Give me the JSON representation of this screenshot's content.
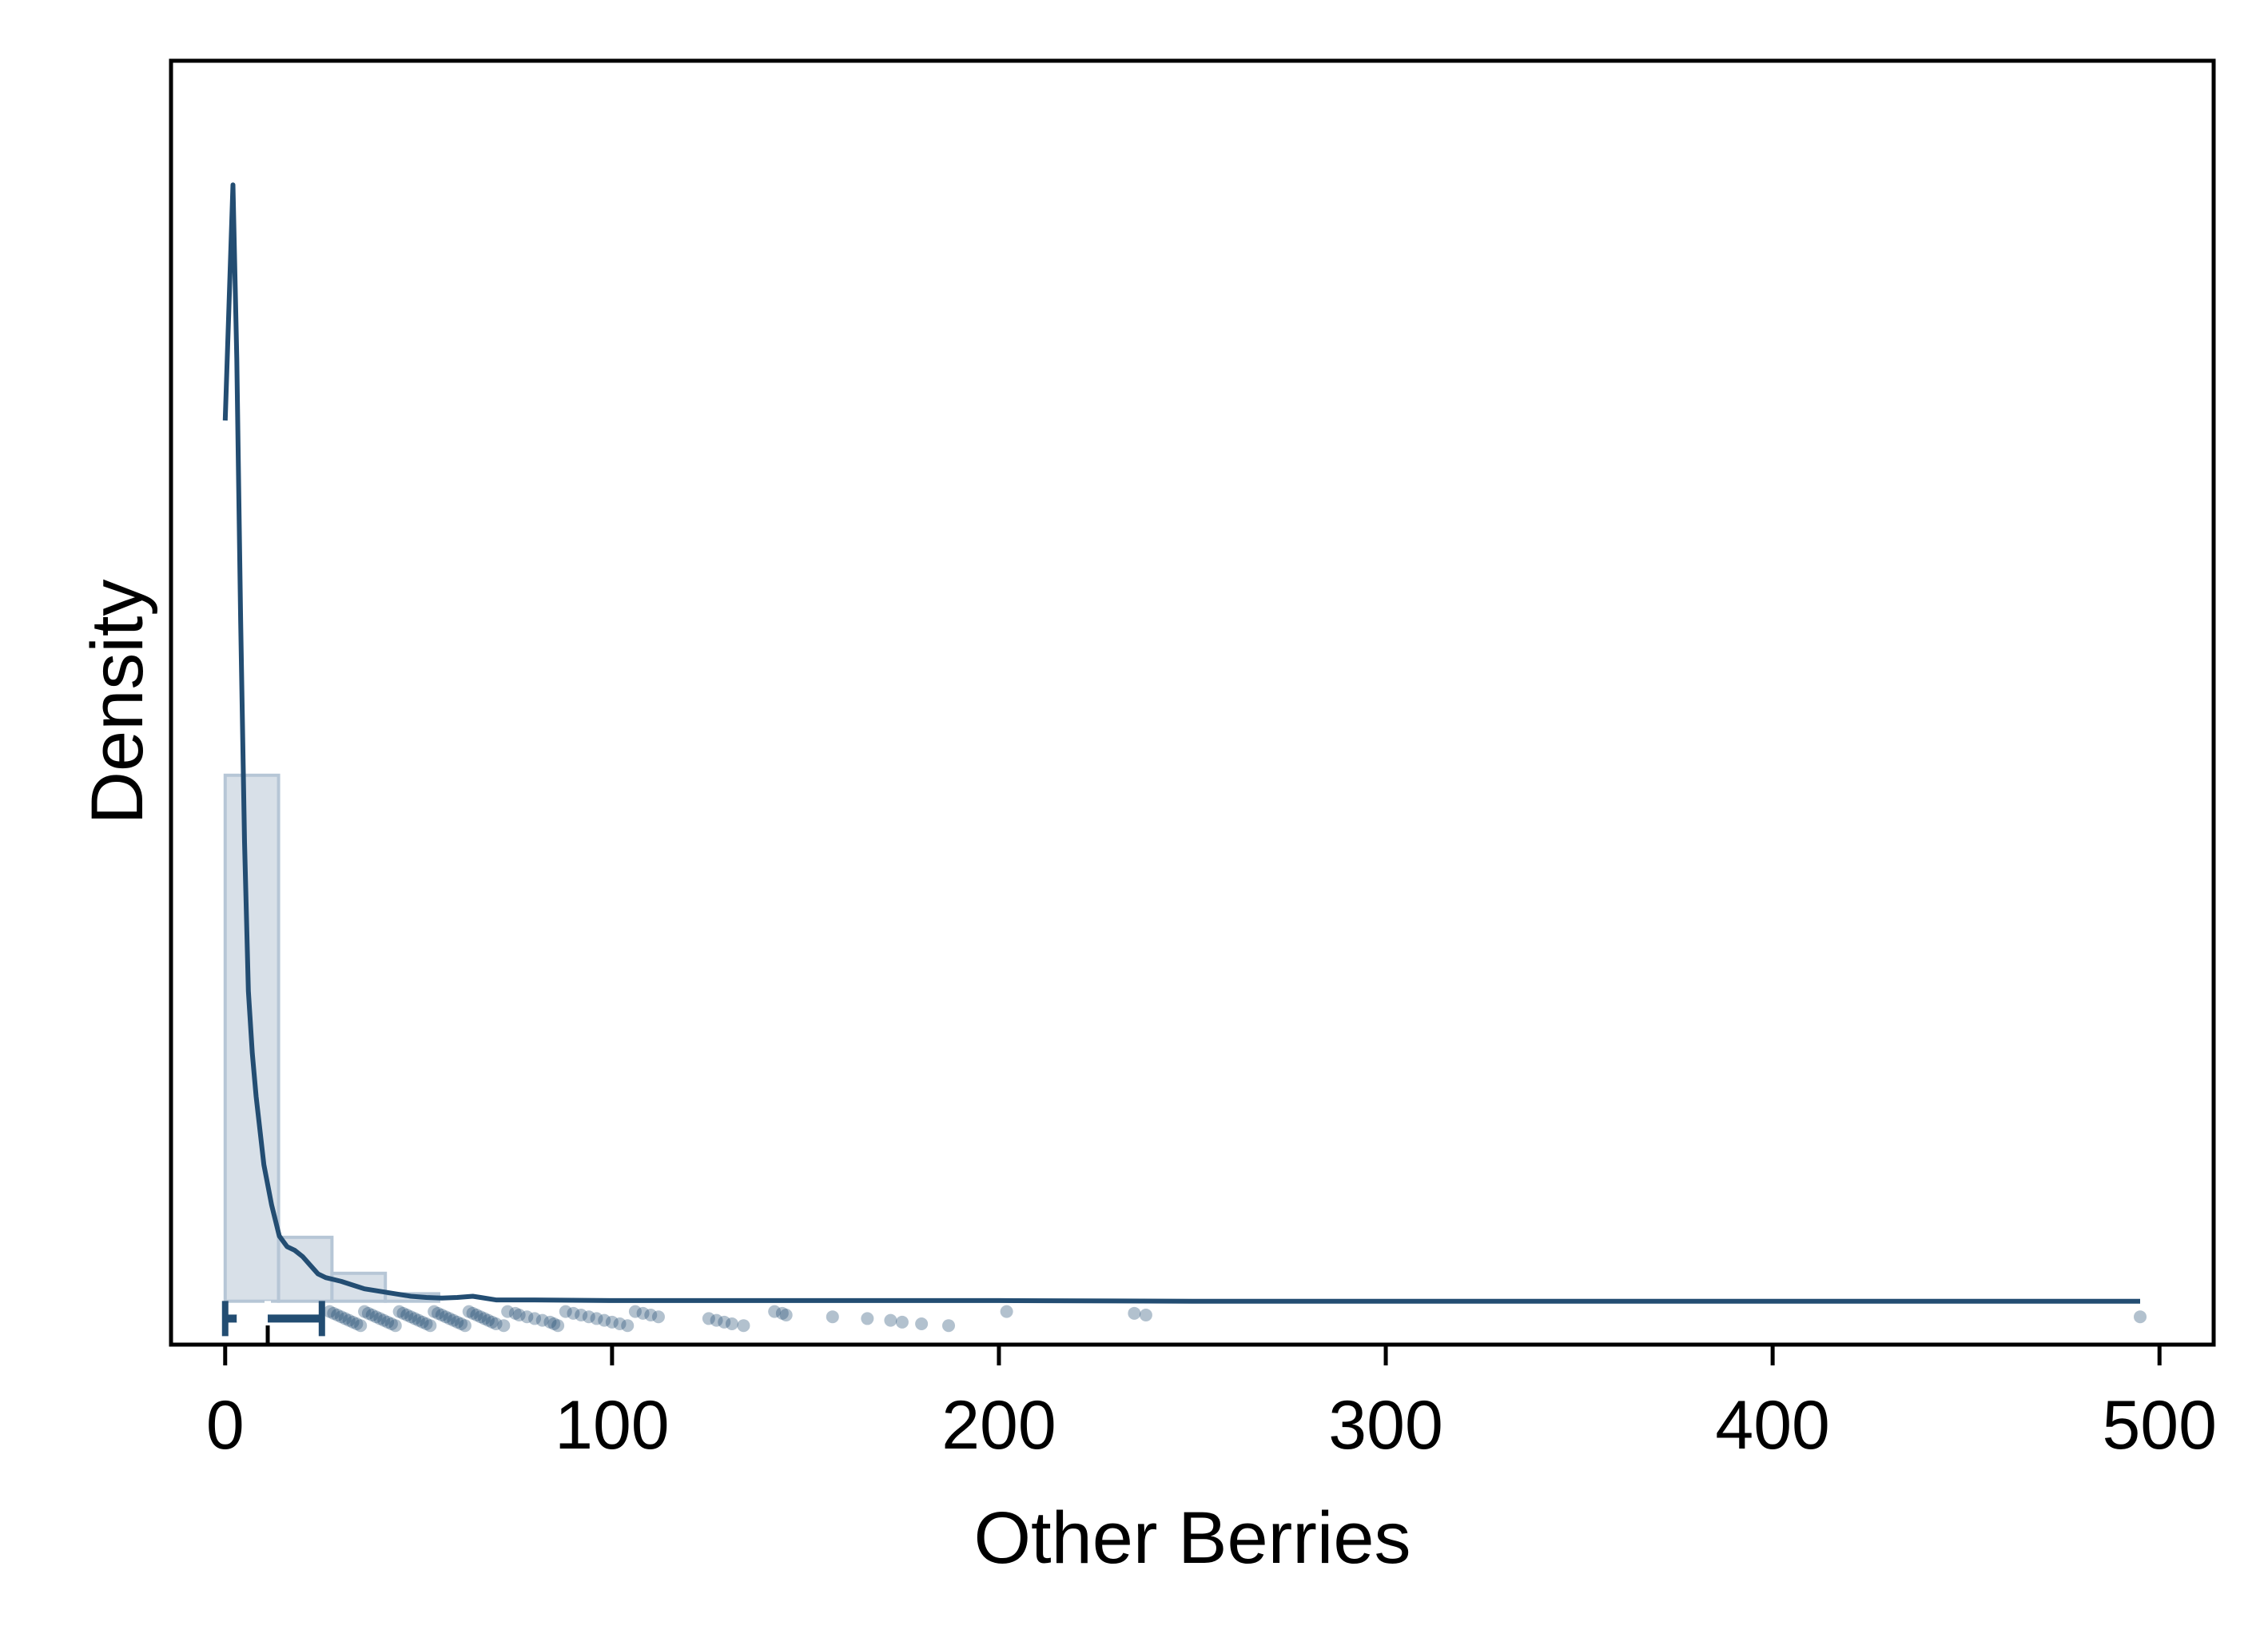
{
  "chart_data": {
    "type": "histogram-density-box-strip",
    "title": "",
    "xlabel": "Other Berries",
    "ylabel": "Density",
    "xlim": [
      -14,
      514
    ],
    "ylim": [
      -0.007,
      0.2
    ],
    "x_ticks": [
      0,
      100,
      200,
      300,
      400,
      500
    ],
    "y_ticks": [],
    "grid": false,
    "legend": null,
    "histogram": {
      "bin_edges": [
        0,
        13.8,
        27.6,
        41.4,
        55.2
      ],
      "density": [
        0.0848,
        0.0103,
        0.0045,
        0.0012
      ]
    },
    "density_curve": {
      "x": [
        0,
        2,
        3,
        4,
        5,
        6,
        7,
        8,
        10,
        12,
        14,
        16,
        18,
        20,
        22,
        24,
        26,
        28,
        30,
        32,
        34,
        36,
        40,
        44,
        48,
        52,
        56,
        60,
        64,
        66,
        70,
        80,
        100,
        120,
        150,
        200,
        250,
        300,
        400,
        495
      ],
      "y": [
        0.142,
        0.18,
        0.152,
        0.11,
        0.074,
        0.05,
        0.04,
        0.033,
        0.022,
        0.0155,
        0.0105,
        0.0088,
        0.0082,
        0.0072,
        0.0058,
        0.0044,
        0.0038,
        0.0035,
        0.0032,
        0.0028,
        0.0024,
        0.002,
        0.0016,
        0.0012,
        0.0008,
        0.0006,
        0.0005,
        0.0006,
        0.0008,
        0.0006,
        0.0002,
        0.0002,
        0.0001,
        0.0001,
        0.0001,
        0.0001,
        0.0,
        0.0,
        0.0,
        0.0
      ]
    },
    "boxplot": {
      "min": 0,
      "q1": 3,
      "median": 11,
      "q3": 25,
      "whisker_high": 26,
      "y_level": -0.0028
    },
    "outliers": [
      27,
      28,
      29,
      30,
      31,
      32,
      33,
      34,
      35,
      36,
      37,
      38,
      39,
      40,
      41,
      42,
      43,
      44,
      45,
      46,
      47,
      48,
      49,
      50,
      51,
      52,
      53,
      54,
      55,
      56,
      57,
      58,
      59,
      60,
      61,
      62,
      63,
      64,
      65,
      66,
      67,
      68,
      69,
      70,
      72,
      73,
      75,
      76,
      78,
      80,
      82,
      84,
      85,
      86,
      88,
      90,
      92,
      94,
      96,
      98,
      100,
      102,
      104,
      106,
      108,
      110,
      112,
      125,
      127,
      129,
      131,
      134,
      142,
      144,
      145,
      157,
      166,
      172,
      175,
      180,
      187,
      202,
      235,
      238,
      495
    ]
  },
  "colors": {
    "line": "#234d72",
    "hist_fill": "#d8e0e8",
    "hist_stroke": "#b6c6d6",
    "point": "#234d72",
    "frame": "#000000",
    "box_mark": "#ffffff"
  }
}
